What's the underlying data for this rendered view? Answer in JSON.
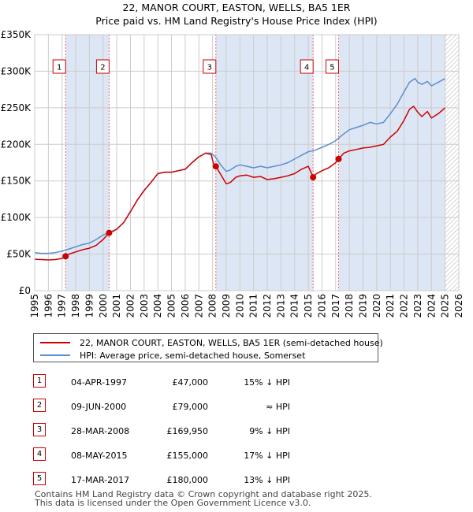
{
  "title_line1": "22, MANOR COURT, EASTON, WELLS, BA5 1ER",
  "title_line2": "Price paid vs. HM Land Registry's House Price Index (HPI)",
  "legend": {
    "property_label": "22, MANOR COURT, EASTON, WELLS, BA5 1ER (semi-detached house)",
    "hpi_label": "HPI: Average price, semi-detached house, Somerset"
  },
  "colors": {
    "property": "#cc0000",
    "hpi": "#5a8fd0",
    "shade": "#dde6f4",
    "grid": "#cccccc",
    "marker_line": "#ee6666"
  },
  "transactions": [
    {
      "num": "1",
      "date": "04-APR-1997",
      "price": "£47,000",
      "hpi": "15% ↓ HPI"
    },
    {
      "num": "2",
      "date": "09-JUN-2000",
      "price": "£79,000",
      "hpi": "≈ HPI"
    },
    {
      "num": "3",
      "date": "28-MAR-2008",
      "price": "£169,950",
      "hpi": "9% ↓ HPI"
    },
    {
      "num": "4",
      "date": "08-MAY-2015",
      "price": "£155,000",
      "hpi": "17% ↓ HPI"
    },
    {
      "num": "5",
      "date": "17-MAR-2017",
      "price": "£180,000",
      "hpi": "13% ↓ HPI"
    }
  ],
  "footer_line1": "Contains HM Land Registry data © Crown copyright and database right 2025.",
  "footer_line2": "This data is licensed under the Open Government Licence v3.0.",
  "chart_data": {
    "type": "line",
    "title": "22, MANOR COURT, EASTON, WELLS, BA5 1ER",
    "subtitle": "Price paid vs. HM Land Registry's House Price Index (HPI)",
    "xlabel": "",
    "ylabel": "",
    "xlim": [
      1995,
      2026
    ],
    "ylim": [
      0,
      350000
    ],
    "x_ticks": [
      1995,
      1996,
      1997,
      1998,
      1999,
      2000,
      2001,
      2002,
      2003,
      2004,
      2005,
      2006,
      2007,
      2008,
      2009,
      2010,
      2011,
      2012,
      2013,
      2014,
      2015,
      2016,
      2017,
      2018,
      2019,
      2020,
      2021,
      2022,
      2023,
      2024,
      2025,
      2026
    ],
    "y_ticks": [
      0,
      50000,
      100000,
      150000,
      200000,
      250000,
      300000,
      350000
    ],
    "y_tick_labels": [
      "£0",
      "£50K",
      "£100K",
      "£150K",
      "£200K",
      "£250K",
      "£300K",
      "£350K"
    ],
    "grid": true,
    "legend_position": "below",
    "shaded_ranges": [
      [
        1997.26,
        2000.44
      ],
      [
        2008.24,
        2015.35
      ],
      [
        2017.21,
        2025.0
      ]
    ],
    "hatched_range": [
      2025.0,
      2026
    ],
    "series": [
      {
        "name": "22, MANOR COURT, EASTON, WELLS, BA5 1ER (semi-detached house)",
        "color": "#cc0000",
        "x": [
          1995.0,
          1995.5,
          1996.0,
          1996.5,
          1997.0,
          1997.26,
          1997.5,
          1998.0,
          1998.5,
          1999.0,
          1999.5,
          2000.0,
          2000.3,
          2000.44,
          2000.7,
          2001.0,
          2001.5,
          2002.0,
          2002.5,
          2003.0,
          2003.5,
          2004.0,
          2004.5,
          2005.0,
          2005.5,
          2006.0,
          2006.5,
          2007.0,
          2007.5,
          2007.9,
          2008.1,
          2008.24,
          2008.5,
          2009.0,
          2009.3,
          2009.7,
          2010.0,
          2010.5,
          2011.0,
          2011.5,
          2012.0,
          2012.5,
          2013.0,
          2013.5,
          2014.0,
          2014.5,
          2015.0,
          2015.35,
          2015.6,
          2016.0,
          2016.5,
          2017.0,
          2017.21,
          2017.6,
          2018.0,
          2018.5,
          2019.0,
          2019.5,
          2020.0,
          2020.5,
          2021.0,
          2021.5,
          2022.0,
          2022.4,
          2022.7,
          2023.0,
          2023.3,
          2023.7,
          2024.0,
          2024.5,
          2025.0
        ],
        "values": [
          43000,
          42500,
          42000,
          42500,
          44000,
          47000,
          50000,
          53000,
          56000,
          58000,
          62000,
          70000,
          76000,
          79000,
          81000,
          84000,
          93000,
          108000,
          124000,
          137000,
          148000,
          160000,
          162000,
          162000,
          164000,
          166000,
          175000,
          183000,
          188000,
          186000,
          172000,
          169950,
          162000,
          146000,
          148000,
          155000,
          157000,
          158000,
          155000,
          156000,
          152000,
          153000,
          155000,
          157000,
          160000,
          166000,
          170000,
          155000,
          160000,
          164000,
          168000,
          175000,
          180000,
          188000,
          191000,
          193000,
          195000,
          196000,
          198000,
          200000,
          210000,
          218000,
          233000,
          248000,
          252000,
          244000,
          238000,
          245000,
          236000,
          242000,
          250000
        ]
      },
      {
        "name": "HPI: Average price, semi-detached house, Somerset",
        "color": "#5a8fd0",
        "x": [
          1995.0,
          1995.5,
          1996.0,
          1996.5,
          1997.0,
          1997.5,
          1998.0,
          1998.5,
          1999.0,
          1999.5,
          2000.0,
          2000.5,
          2001.0,
          2001.5,
          2002.0,
          2002.5,
          2003.0,
          2003.5,
          2004.0,
          2004.5,
          2005.0,
          2005.5,
          2006.0,
          2006.5,
          2007.0,
          2007.5,
          2007.9,
          2008.2,
          2008.6,
          2009.0,
          2009.3,
          2009.7,
          2010.0,
          2010.5,
          2011.0,
          2011.5,
          2012.0,
          2012.5,
          2013.0,
          2013.5,
          2014.0,
          2014.5,
          2015.0,
          2015.5,
          2016.0,
          2016.5,
          2017.0,
          2017.5,
          2018.0,
          2018.5,
          2019.0,
          2019.5,
          2020.0,
          2020.5,
          2021.0,
          2021.5,
          2022.0,
          2022.4,
          2022.8,
          2023.0,
          2023.3,
          2023.7,
          2024.0,
          2024.5,
          2025.0
        ],
        "values": [
          52000,
          51000,
          51000,
          52000,
          54000,
          57000,
          60000,
          63000,
          65000,
          70000,
          76000,
          80000,
          84000,
          93000,
          108000,
          124000,
          137000,
          148000,
          160000,
          162000,
          162000,
          164000,
          166000,
          175000,
          183000,
          188000,
          188000,
          183000,
          172000,
          163000,
          165000,
          170000,
          172000,
          170000,
          168000,
          170000,
          168000,
          170000,
          172000,
          175000,
          180000,
          185000,
          190000,
          192000,
          196000,
          200000,
          205000,
          213000,
          220000,
          223000,
          226000,
          230000,
          228000,
          230000,
          242000,
          255000,
          272000,
          285000,
          290000,
          285000,
          282000,
          286000,
          280000,
          285000,
          290000
        ]
      }
    ],
    "sale_points": [
      {
        "label": "1",
        "x": 1997.26,
        "y": 47000
      },
      {
        "label": "2",
        "x": 2000.44,
        "y": 79000
      },
      {
        "label": "3",
        "x": 2008.24,
        "y": 169950
      },
      {
        "label": "4",
        "x": 2015.35,
        "y": 155000
      },
      {
        "label": "5",
        "x": 2017.21,
        "y": 180000
      }
    ]
  }
}
